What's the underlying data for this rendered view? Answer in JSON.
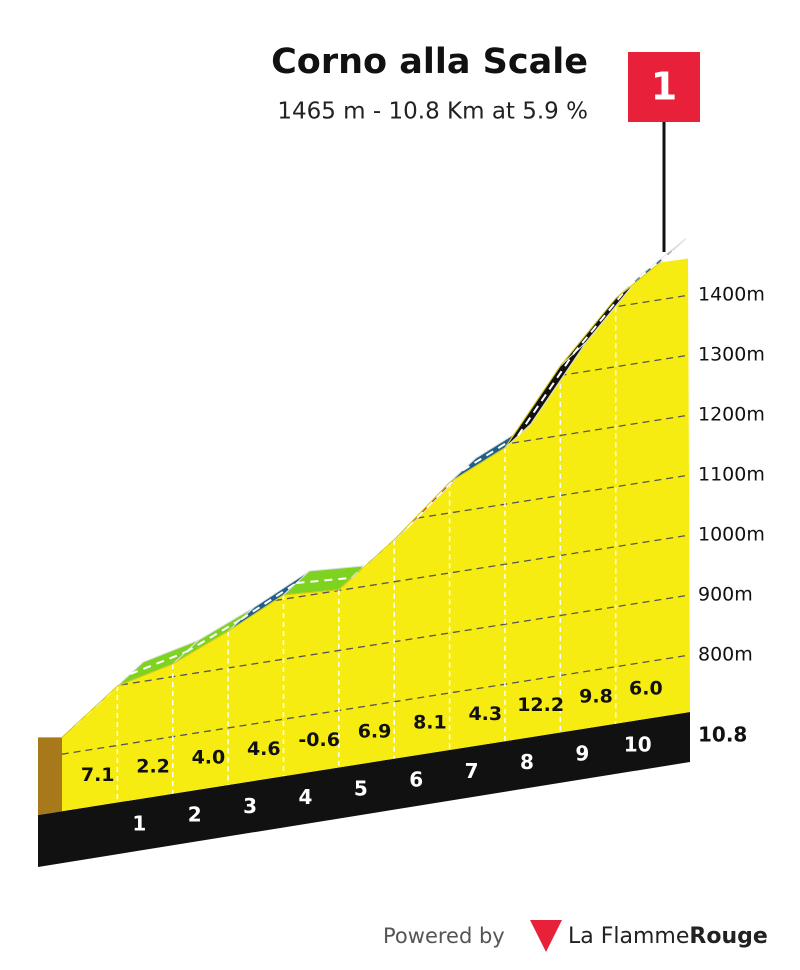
{
  "chart_data": {
    "type": "climb-profile",
    "title": "Corno alla Scale",
    "subtitle": "1465 m - 10.8 Km at 5.9 %",
    "flag": "1",
    "x": [
      0,
      1,
      2,
      3,
      4,
      5,
      6,
      7,
      8,
      9,
      10,
      10.8
    ],
    "elevation": [
      828,
      899,
      921,
      961,
      1007,
      1001,
      1070,
      1151,
      1194,
      1316,
      1414,
      1462
    ],
    "gradients": [
      7.1,
      2.2,
      4,
      4.6,
      -0.6,
      6.9,
      8.1,
      4.3,
      12.2,
      9.8,
      6
    ],
    "value_labels": [
      "7.1",
      "2.2",
      "4.0",
      "4.6",
      "-0.6",
      "6.9",
      "8.1",
      "4.3",
      "12.2",
      "9.8",
      "6.0"
    ],
    "colors": [
      "#e8203a",
      "#7ed321",
      "#7ed321",
      "#1f5f8b",
      "#7ed321",
      "#e8203a",
      "#e8203a",
      "#1f5f8b",
      "#111111",
      "#111111",
      "#1f5f8b"
    ],
    "xlim": [
      0,
      10.8
    ],
    "xticks": [
      1,
      2,
      3,
      4,
      5,
      6,
      7,
      8,
      9,
      10,
      10.8
    ],
    "ylim": [
      705,
      1500
    ],
    "yticks": [
      {
        "value": 800,
        "label": "800m"
      },
      {
        "value": 900,
        "label": "900m"
      },
      {
        "value": 1000,
        "label": "1000m"
      },
      {
        "value": 1100,
        "label": "1100m"
      },
      {
        "value": 1200,
        "label": "1200m"
      },
      {
        "value": 1300,
        "label": "1300m"
      },
      {
        "value": 1400,
        "label": "1400m"
      }
    ],
    "grid": true,
    "face_color": "#f7ec12"
  },
  "footer": {
    "powered": "Powered by",
    "brand_a": "La Flamme",
    "brand_b": "Rouge"
  }
}
